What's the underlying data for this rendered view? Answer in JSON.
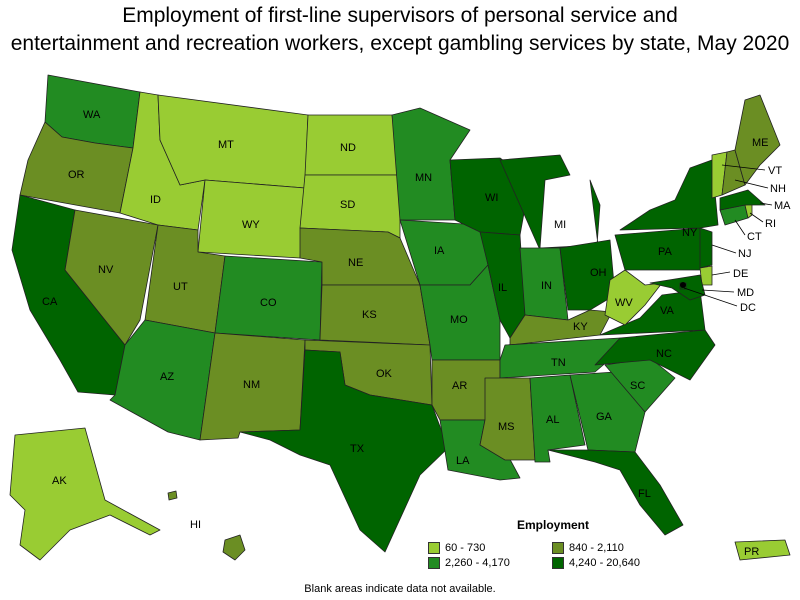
{
  "title": {
    "line1": "Employment of first-line supervisors of personal service and",
    "line2": "entertainment and recreation workers, except gambling services by state, May 2020"
  },
  "colors": {
    "bin1": "#99cc33",
    "bin2": "#228b22",
    "bin3": "#6b8e23",
    "bin4": "#006400"
  },
  "legend": {
    "title": "Employment",
    "items": [
      {
        "label": "60 - 730",
        "bin": "bin1"
      },
      {
        "label": "840 - 2,110",
        "bin": "bin3"
      },
      {
        "label": "2,260 - 4,170",
        "bin": "bin2"
      },
      {
        "label": "4,240 - 20,640",
        "bin": "bin4"
      }
    ]
  },
  "footnote": "Blank areas indicate data not available.",
  "states": {
    "WA": "bin2",
    "OR": "bin3",
    "CA": "bin4",
    "NV": "bin3",
    "ID": "bin1",
    "MT": "bin1",
    "WY": "bin1",
    "UT": "bin3",
    "AZ": "bin2",
    "CO": "bin2",
    "NM": "bin3",
    "ND": "bin1",
    "SD": "bin1",
    "NE": "bin3",
    "KS": "bin3",
    "OK": "bin3",
    "TX": "bin4",
    "MN": "bin2",
    "IA": "bin2",
    "MO": "bin2",
    "AR": "bin3",
    "LA": "bin2",
    "WI": "bin4",
    "IL": "bin4",
    "MI": "bin4",
    "IN": "bin2",
    "OH": "bin4",
    "KY": "bin3",
    "TN": "bin2",
    "MS": "bin3",
    "AL": "bin2",
    "GA": "bin2",
    "FL": "bin4",
    "SC": "bin2",
    "NC": "bin4",
    "VA": "bin4",
    "WV": "bin1",
    "PA": "bin4",
    "NY": "bin4",
    "VT": "bin1",
    "NH": "bin3",
    "ME": "bin3",
    "MA": "bin4",
    "RI": "bin1",
    "CT": "bin2",
    "NJ": "bin4",
    "DE": "bin1",
    "MD": "bin4",
    "DC": "bin4",
    "AK": "bin1",
    "HI": "bin3",
    "PR": "bin1"
  }
}
